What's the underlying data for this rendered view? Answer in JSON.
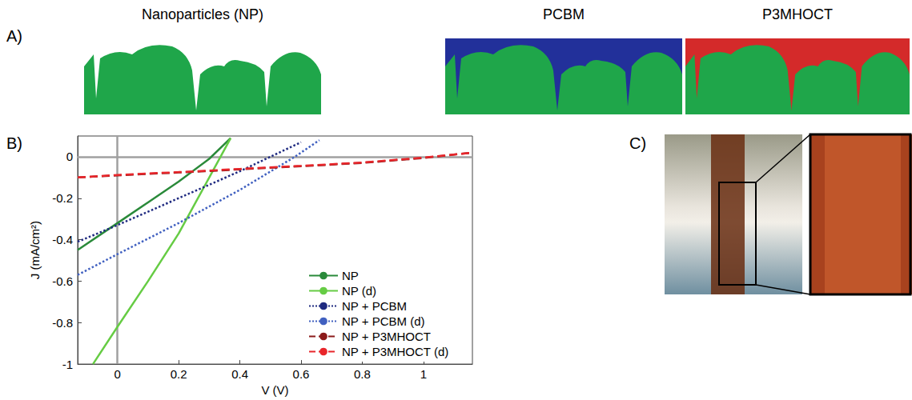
{
  "panel_labels": [
    "A)",
    "B)",
    "C)"
  ],
  "schematics": [
    {
      "title": "Nanoparticles (NP)"
    },
    {
      "title": "PCBM",
      "color": "#22309a"
    },
    {
      "title": "P3MHOCT",
      "color": "#d42a2a"
    }
  ],
  "chart_data": {
    "type": "line",
    "x_label": "V (V)",
    "y_label": "J (mA/cm²)",
    "xlim": [
      -0.13,
      1.16
    ],
    "ylim": [
      -1,
      0.1
    ],
    "xticks": [
      0,
      0.2,
      0.4,
      0.6,
      0.8,
      1
    ],
    "yticks": [
      -1,
      -0.8,
      -0.6,
      -0.4,
      -0.2,
      0
    ],
    "grid": false,
    "legend": "lower right",
    "series": [
      {
        "name": "NP",
        "color": "#2a8a3a",
        "line_style": "solid",
        "x": [
          -0.13,
          0,
          0.1,
          0.2,
          0.3,
          0.37
        ],
        "values": [
          -0.45,
          -0.32,
          -0.22,
          -0.12,
          -0.01,
          0.09
        ]
      },
      {
        "name": "NP (d)",
        "color": "#66cc44",
        "line_style": "solid",
        "x": [
          -0.08,
          0,
          0.1,
          0.2,
          0.3,
          0.37
        ],
        "values": [
          -1,
          -0.82,
          -0.6,
          -0.37,
          -0.1,
          0.09
        ]
      },
      {
        "name": "NP + PCBM",
        "color": "#1f2a80",
        "line_style": "dotted",
        "x": [
          -0.13,
          0,
          0.2,
          0.4,
          0.5,
          0.6
        ],
        "values": [
          -0.41,
          -0.33,
          -0.2,
          -0.07,
          0,
          0.07
        ]
      },
      {
        "name": "NP + PCBM (d)",
        "color": "#4060c0",
        "line_style": "dotted",
        "x": [
          -0.13,
          0,
          0.2,
          0.4,
          0.58,
          0.66
        ],
        "values": [
          -0.57,
          -0.47,
          -0.32,
          -0.16,
          0,
          0.08
        ]
      },
      {
        "name": "NP + P3MHOCT",
        "color": "#8b1a1a",
        "line_style": "dashed",
        "x": [
          -0.13,
          0,
          0.2,
          0.4,
          0.6,
          0.8,
          1,
          1.16
        ],
        "values": [
          -0.1,
          -0.09,
          -0.076,
          -0.061,
          -0.046,
          -0.03,
          -0.006,
          0.02
        ]
      },
      {
        "name": "NP + P3MHOCT (d)",
        "color": "#e8262b",
        "line_style": "dashed",
        "x": [
          -0.13,
          0,
          0.2,
          0.4,
          0.6,
          0.8,
          1,
          1.16
        ],
        "values": [
          -0.1,
          -0.088,
          -0.074,
          -0.059,
          -0.044,
          -0.028,
          -0.004,
          0.02
        ]
      }
    ]
  }
}
